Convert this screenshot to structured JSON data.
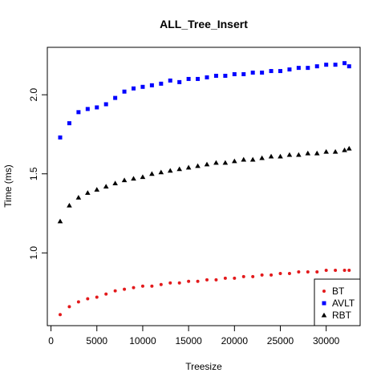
{
  "chart_data": {
    "type": "scatter",
    "title": "ALL_Tree_Insert",
    "xlabel": "Treesize",
    "ylabel": "Time (ms)",
    "xlim": [
      -400,
      33700
    ],
    "ylim": [
      0.54,
      2.3
    ],
    "x_ticks": [
      0,
      5000,
      10000,
      15000,
      20000,
      25000,
      30000
    ],
    "y_ticks": [
      1.0,
      1.5,
      2.0
    ],
    "legend_position": "bottom-right",
    "grid": false,
    "series": [
      {
        "name": "BT",
        "marker": "circle",
        "color": "#e31a1c",
        "x": [
          1000,
          2000,
          3000,
          4000,
          5000,
          6000,
          7000,
          8000,
          9000,
          10000,
          11000,
          12000,
          13000,
          14000,
          15000,
          16000,
          17000,
          18000,
          19000,
          20000,
          21000,
          22000,
          23000,
          24000,
          25000,
          26000,
          27000,
          28000,
          29000,
          30000,
          31000,
          32000,
          32500
        ],
        "y": [
          0.61,
          0.66,
          0.69,
          0.71,
          0.72,
          0.74,
          0.76,
          0.77,
          0.78,
          0.79,
          0.79,
          0.8,
          0.81,
          0.81,
          0.82,
          0.82,
          0.83,
          0.83,
          0.84,
          0.84,
          0.85,
          0.85,
          0.86,
          0.86,
          0.87,
          0.87,
          0.88,
          0.88,
          0.88,
          0.89,
          0.89,
          0.89,
          0.89
        ]
      },
      {
        "name": "AVLT",
        "marker": "square",
        "color": "#0000ff",
        "x": [
          1000,
          2000,
          3000,
          4000,
          5000,
          6000,
          7000,
          8000,
          9000,
          10000,
          11000,
          12000,
          13000,
          14000,
          15000,
          16000,
          17000,
          18000,
          19000,
          20000,
          21000,
          22000,
          23000,
          24000,
          25000,
          26000,
          27000,
          28000,
          29000,
          30000,
          31000,
          32000,
          32500
        ],
        "y": [
          1.73,
          1.82,
          1.89,
          1.91,
          1.92,
          1.94,
          1.98,
          2.02,
          2.04,
          2.05,
          2.06,
          2.07,
          2.09,
          2.08,
          2.1,
          2.1,
          2.11,
          2.12,
          2.12,
          2.13,
          2.13,
          2.14,
          2.14,
          2.15,
          2.15,
          2.16,
          2.17,
          2.17,
          2.18,
          2.19,
          2.19,
          2.2,
          2.18
        ]
      },
      {
        "name": "RBT",
        "marker": "triangle",
        "color": "#000000",
        "x": [
          1000,
          2000,
          3000,
          4000,
          5000,
          6000,
          7000,
          8000,
          9000,
          10000,
          11000,
          12000,
          13000,
          14000,
          15000,
          16000,
          17000,
          18000,
          19000,
          20000,
          21000,
          22000,
          23000,
          24000,
          25000,
          26000,
          27000,
          28000,
          29000,
          30000,
          31000,
          32000,
          32500
        ],
        "y": [
          1.2,
          1.3,
          1.35,
          1.38,
          1.4,
          1.42,
          1.44,
          1.46,
          1.47,
          1.48,
          1.5,
          1.51,
          1.52,
          1.53,
          1.54,
          1.55,
          1.56,
          1.57,
          1.57,
          1.58,
          1.59,
          1.59,
          1.6,
          1.61,
          1.61,
          1.62,
          1.62,
          1.63,
          1.63,
          1.64,
          1.64,
          1.65,
          1.66
        ]
      }
    ]
  }
}
